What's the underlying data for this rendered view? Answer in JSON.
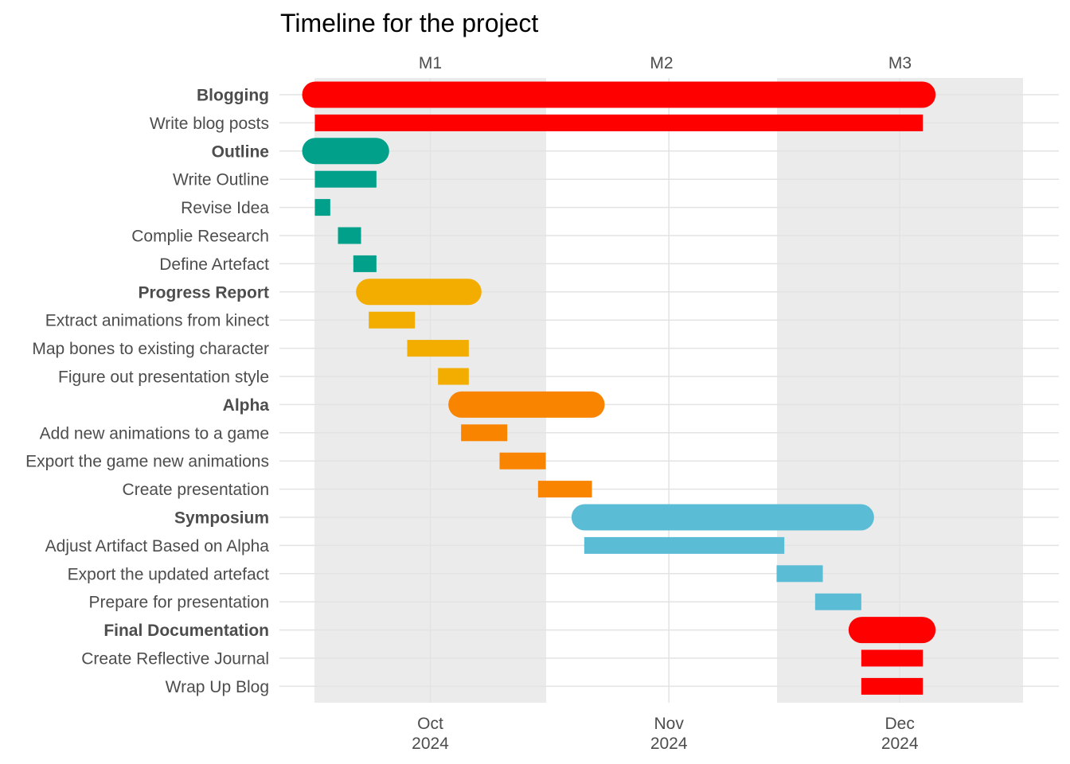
{
  "chart_data": {
    "type": "gantt",
    "title": "Timeline for the project",
    "x_axis": {
      "type": "date",
      "range": [
        "2024-09-16",
        "2024-12-17"
      ],
      "ticks": [
        {
          "date": "2024-10-01",
          "label_month": "Oct",
          "label_year": "2024"
        },
        {
          "date": "2024-11-01",
          "label_month": "Nov",
          "label_year": "2024"
        },
        {
          "date": "2024-12-01",
          "label_month": "Dec",
          "label_year": "2024"
        }
      ]
    },
    "milestones": [
      {
        "label": "M1",
        "start": "2024-09-16",
        "end": "2024-10-16",
        "shaded": true
      },
      {
        "label": "M2",
        "start": "2024-10-16",
        "end": "2024-11-15",
        "shaded": false
      },
      {
        "label": "M3",
        "start": "2024-11-15",
        "end": "2024-12-17",
        "shaded": true
      }
    ],
    "grid": true,
    "rows": [
      {
        "label": "Blogging",
        "group": true,
        "start": "2024-09-16",
        "end": "2024-12-03",
        "color": "#FF0000"
      },
      {
        "label": "Write blog posts",
        "group": false,
        "start": "2024-09-16",
        "end": "2024-12-03",
        "color": "#FF0000"
      },
      {
        "label": "Outline",
        "group": true,
        "start": "2024-09-16",
        "end": "2024-09-23",
        "color": "#00A08A"
      },
      {
        "label": "Write Outline",
        "group": false,
        "start": "2024-09-16",
        "end": "2024-09-23",
        "color": "#00A08A"
      },
      {
        "label": "Revise Idea",
        "group": false,
        "start": "2024-09-16",
        "end": "2024-09-17",
        "color": "#00A08A"
      },
      {
        "label": "Complie Research",
        "group": false,
        "start": "2024-09-19",
        "end": "2024-09-21",
        "color": "#00A08A"
      },
      {
        "label": "Define Artefact",
        "group": false,
        "start": "2024-09-21",
        "end": "2024-09-23",
        "color": "#00A08A"
      },
      {
        "label": "Progress Report",
        "group": true,
        "start": "2024-09-23",
        "end": "2024-10-05",
        "color": "#F2AD00"
      },
      {
        "label": "Extract animations from kinect",
        "group": false,
        "start": "2024-09-23",
        "end": "2024-09-28",
        "color": "#F2AD00"
      },
      {
        "label": "Map bones to existing character",
        "group": false,
        "start": "2024-09-28",
        "end": "2024-10-05",
        "color": "#F2AD00"
      },
      {
        "label": "Figure out presentation style",
        "group": false,
        "start": "2024-10-02",
        "end": "2024-10-05",
        "color": "#F2AD00"
      },
      {
        "label": "Alpha",
        "group": true,
        "start": "2024-10-05",
        "end": "2024-10-21",
        "color": "#F98400"
      },
      {
        "label": "Add new animations to a game",
        "group": false,
        "start": "2024-10-05",
        "end": "2024-10-10",
        "color": "#F98400"
      },
      {
        "label": "Export the game new animations",
        "group": false,
        "start": "2024-10-10",
        "end": "2024-10-15",
        "color": "#F98400"
      },
      {
        "label": "Create presentation",
        "group": false,
        "start": "2024-10-15",
        "end": "2024-10-21",
        "color": "#F98400"
      },
      {
        "label": "Symposium",
        "group": true,
        "start": "2024-10-21",
        "end": "2024-11-25",
        "color": "#5BBCD6"
      },
      {
        "label": "Adjust Artifact Based on Alpha",
        "group": false,
        "start": "2024-10-21",
        "end": "2024-11-15",
        "color": "#5BBCD6"
      },
      {
        "label": "Export the updated artefact",
        "group": false,
        "start": "2024-11-15",
        "end": "2024-11-20",
        "color": "#5BBCD6"
      },
      {
        "label": "Prepare for presentation",
        "group": false,
        "start": "2024-11-20",
        "end": "2024-11-25",
        "color": "#5BBCD6"
      },
      {
        "label": "Final Documentation",
        "group": true,
        "start": "2024-11-26",
        "end": "2024-12-03",
        "color": "#FF0000"
      },
      {
        "label": "Create Reflective Journal",
        "group": false,
        "start": "2024-11-26",
        "end": "2024-12-03",
        "color": "#FF0000"
      },
      {
        "label": "Wrap Up Blog",
        "group": false,
        "start": "2024-11-26",
        "end": "2024-12-03",
        "color": "#FF0000"
      }
    ]
  }
}
